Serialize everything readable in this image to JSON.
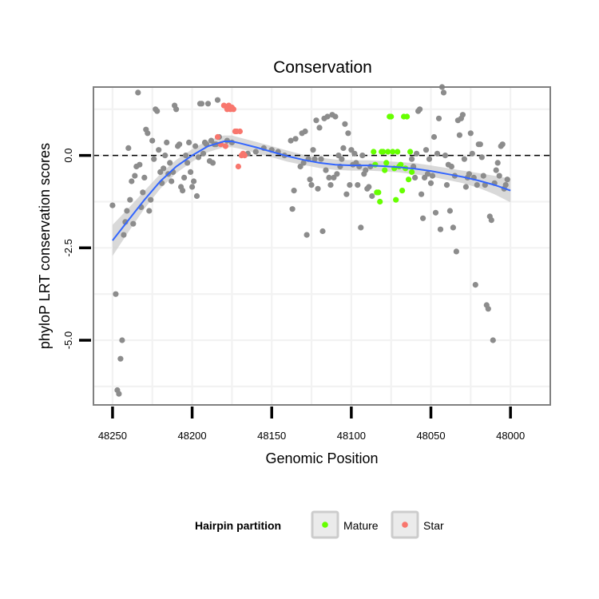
{
  "chart_data": {
    "type": "scatter",
    "title": "Conservation",
    "xlabel": "Genomic Position",
    "ylabel": "phyloP LRT conservation scores",
    "xlim": [
      48262,
      47975
    ],
    "x_reversed": true,
    "ylim": [
      -6.75,
      1.85
    ],
    "x_ticks": [
      48250,
      48200,
      48150,
      48100,
      48050,
      48000
    ],
    "y_ticks": [
      0.0,
      -2.5,
      -5.0
    ],
    "x_tick_labels": [
      "48250",
      "48200",
      "48150",
      "48100",
      "48050",
      "48000"
    ],
    "y_tick_labels": [
      "0.0",
      "-2.5",
      "-5.0"
    ],
    "reference_line": {
      "y": 0,
      "style": "dashed",
      "color": "#000000"
    },
    "legend": {
      "title": "Hairpin partition",
      "placement": "bottom",
      "entries": [
        {
          "label": "Mature",
          "color": "#66ff00"
        },
        {
          "label": "Star",
          "color": "#f8766d"
        }
      ]
    },
    "colors": {
      "other": "#8c8c8c",
      "mature": "#66ff00",
      "star": "#f8766d",
      "smooth": "#3366ff",
      "band": "#cccccc"
    },
    "series": [
      {
        "name": "Other",
        "points": [
          [
            48250,
            -1.35
          ],
          [
            48248,
            -3.75
          ],
          [
            48247,
            -6.35
          ],
          [
            48246,
            -6.45
          ],
          [
            48245,
            -5.5
          ],
          [
            48244,
            -5.0
          ],
          [
            48243,
            -2.15
          ],
          [
            48242,
            -1.8
          ],
          [
            48241,
            -1.5
          ],
          [
            48240,
            0.2
          ],
          [
            48239,
            -1.2
          ],
          [
            48238,
            -0.7
          ],
          [
            48237,
            -1.85
          ],
          [
            48236,
            -0.55
          ],
          [
            48235,
            -0.3
          ],
          [
            48234,
            1.7
          ],
          [
            48233,
            -0.25
          ],
          [
            48232,
            -1.4
          ],
          [
            48231,
            -1.0
          ],
          [
            48230,
            -0.6
          ],
          [
            48229,
            0.7
          ],
          [
            48228,
            0.6
          ],
          [
            48227,
            -1.5
          ],
          [
            48226,
            -1.2
          ],
          [
            48225,
            0.4
          ],
          [
            48224,
            -0.1
          ],
          [
            48223,
            1.25
          ],
          [
            48222,
            1.2
          ],
          [
            48221,
            0.15
          ],
          [
            48220,
            -0.45
          ],
          [
            48219,
            -0.75
          ],
          [
            48218,
            -0.35
          ],
          [
            48217,
            0.0
          ],
          [
            48216,
            0.35
          ],
          [
            48215,
            -0.5
          ],
          [
            48214,
            -0.2
          ],
          [
            48213,
            -0.7
          ],
          [
            48212,
            -0.45
          ],
          [
            48211,
            1.35
          ],
          [
            48210,
            1.25
          ],
          [
            48209,
            0.25
          ],
          [
            48208,
            0.3
          ],
          [
            48207,
            -0.85
          ],
          [
            48206,
            -0.95
          ],
          [
            48205,
            -0.6
          ],
          [
            48204,
            0.0
          ],
          [
            48203,
            -0.2
          ],
          [
            48202,
            0.35
          ],
          [
            48201,
            -0.45
          ],
          [
            48200,
            -0.85
          ],
          [
            48199,
            -0.7
          ],
          [
            48198,
            0.25
          ],
          [
            48197,
            -1.1
          ],
          [
            48196,
            -0.05
          ],
          [
            48195,
            1.4
          ],
          [
            48194,
            1.4
          ],
          [
            48193,
            0.05
          ],
          [
            48192,
            0.35
          ],
          [
            48191,
            0.3
          ],
          [
            48190,
            1.4
          ],
          [
            48189,
            -0.15
          ],
          [
            48188,
            0.4
          ],
          [
            48187,
            -0.2
          ],
          [
            48186,
            0.3
          ],
          [
            48185,
            0.3
          ],
          [
            48184,
            1.5
          ],
          [
            48183,
            0.5
          ],
          [
            48178,
            0.4
          ],
          [
            48175,
            0.35
          ],
          [
            48165,
            0.05
          ],
          [
            48160,
            0.1
          ],
          [
            48155,
            0.2
          ],
          [
            48150,
            0.15
          ],
          [
            48146,
            0.1
          ],
          [
            48142,
            0.0
          ],
          [
            48138,
            0.4
          ],
          [
            48137,
            -1.45
          ],
          [
            48136,
            -0.95
          ],
          [
            48135,
            0.45
          ],
          [
            48132,
            -0.3
          ],
          [
            48131,
            0.6
          ],
          [
            48130,
            -0.2
          ],
          [
            48129,
            0.65
          ],
          [
            48128,
            -2.15
          ],
          [
            48127,
            -0.1
          ],
          [
            48126,
            -0.65
          ],
          [
            48125,
            -0.8
          ],
          [
            48124,
            0.15
          ],
          [
            48123,
            -0.1
          ],
          [
            48122,
            0.95
          ],
          [
            48121,
            -0.9
          ],
          [
            48120,
            0.75
          ],
          [
            48119,
            -0.1
          ],
          [
            48118,
            -2.05
          ],
          [
            48117,
            1.0
          ],
          [
            48116,
            -0.4
          ],
          [
            48115,
            1.05
          ],
          [
            48114,
            -0.6
          ],
          [
            48113,
            -0.8
          ],
          [
            48112,
            1.1
          ],
          [
            48111,
            -0.6
          ],
          [
            48110,
            1.05
          ],
          [
            48109,
            -0.5
          ],
          [
            48108,
            0.0
          ],
          [
            48107,
            -0.3
          ],
          [
            48106,
            -0.1
          ],
          [
            48105,
            0.2
          ],
          [
            48104,
            0.85
          ],
          [
            48103,
            -1.05
          ],
          [
            48102,
            0.6
          ],
          [
            48101,
            -0.8
          ],
          [
            48100,
            0.15
          ],
          [
            48099,
            -0.25
          ],
          [
            48098,
            0.05
          ],
          [
            48097,
            -0.2
          ],
          [
            48096,
            -0.8
          ],
          [
            48095,
            -0.3
          ],
          [
            48094,
            -1.95
          ],
          [
            48093,
            0.0
          ],
          [
            48092,
            -0.5
          ],
          [
            48091,
            -0.4
          ],
          [
            48090,
            -0.9
          ],
          [
            48089,
            -0.85
          ],
          [
            48088,
            -0.3
          ],
          [
            48087,
            -1.1
          ],
          [
            48062,
            -0.1
          ],
          [
            48061,
            -0.3
          ],
          [
            48060,
            -0.6
          ],
          [
            48059,
            0.05
          ],
          [
            48058,
            1.2
          ],
          [
            48057,
            1.25
          ],
          [
            48056,
            -1.05
          ],
          [
            48055,
            -1.7
          ],
          [
            48054,
            -0.6
          ],
          [
            48053,
            0.15
          ],
          [
            48052,
            -0.5
          ],
          [
            48051,
            -0.1
          ],
          [
            48050,
            -0.75
          ],
          [
            48049,
            -0.55
          ],
          [
            48048,
            0.5
          ],
          [
            48047,
            -1.55
          ],
          [
            48046,
            0.05
          ],
          [
            48045,
            1.0
          ],
          [
            48044,
            -2.0
          ],
          [
            48043,
            1.85
          ],
          [
            48042,
            1.7
          ],
          [
            48041,
            0.0
          ],
          [
            48040,
            -0.8
          ],
          [
            48039,
            -0.25
          ],
          [
            48038,
            -1.5
          ],
          [
            48037,
            -0.3
          ],
          [
            48036,
            -1.95
          ],
          [
            48035,
            -0.55
          ],
          [
            48034,
            -2.6
          ],
          [
            48033,
            0.95
          ],
          [
            48032,
            0.55
          ],
          [
            48031,
            1.0
          ],
          [
            48030,
            1.1
          ],
          [
            48029,
            -0.1
          ],
          [
            48028,
            -0.85
          ],
          [
            48027,
            -0.6
          ],
          [
            48026,
            -0.5
          ],
          [
            48025,
            0.6
          ],
          [
            48024,
            0.05
          ],
          [
            48023,
            -0.6
          ],
          [
            48022,
            -3.5
          ],
          [
            48021,
            -0.8
          ],
          [
            48020,
            0.3
          ],
          [
            48019,
            0.3
          ],
          [
            48018,
            -0.05
          ],
          [
            48017,
            -0.55
          ],
          [
            48016,
            -0.8
          ],
          [
            48015,
            -4.05
          ],
          [
            48014,
            -4.15
          ],
          [
            48013,
            -1.65
          ],
          [
            48012,
            -1.75
          ],
          [
            48011,
            -5.0
          ],
          [
            48010,
            -0.75
          ],
          [
            48009,
            -0.4
          ],
          [
            48008,
            -0.2
          ],
          [
            48007,
            -0.55
          ],
          [
            48006,
            0.25
          ],
          [
            48005,
            0.3
          ],
          [
            48004,
            -0.9
          ],
          [
            48003,
            -0.8
          ],
          [
            48002,
            -0.65
          ]
        ]
      },
      {
        "name": "Mature",
        "points": [
          [
            48086,
            0.1
          ],
          [
            48085,
            -0.25
          ],
          [
            48084,
            -1.0
          ],
          [
            48083,
            -1.0
          ],
          [
            48082,
            -1.25
          ],
          [
            48081,
            0.1
          ],
          [
            48080,
            0.1
          ],
          [
            48079,
            -0.4
          ],
          [
            48078,
            -0.2
          ],
          [
            48077,
            0.1
          ],
          [
            48076,
            1.05
          ],
          [
            48075,
            1.05
          ],
          [
            48074,
            0.1
          ],
          [
            48073,
            -0.35
          ],
          [
            48072,
            -1.2
          ],
          [
            48071,
            0.1
          ],
          [
            48070,
            -0.3
          ],
          [
            48069,
            -0.25
          ],
          [
            48068,
            -0.95
          ],
          [
            48067,
            1.05
          ],
          [
            48066,
            -0.35
          ],
          [
            48065,
            1.05
          ],
          [
            48064,
            -0.65
          ],
          [
            48063,
            0.1
          ],
          [
            48062,
            -0.45
          ]
        ]
      },
      {
        "name": "Star",
        "points": [
          [
            48184,
            0.5
          ],
          [
            48182,
            0.3
          ],
          [
            48180,
            1.35
          ],
          [
            48179,
            0.25
          ],
          [
            48178,
            1.25
          ],
          [
            48177,
            1.35
          ],
          [
            48176,
            1.25
          ],
          [
            48175,
            1.3
          ],
          [
            48174,
            1.25
          ],
          [
            48173,
            0.65
          ],
          [
            48172,
            0.65
          ],
          [
            48171,
            -0.3
          ],
          [
            48170,
            0.65
          ],
          [
            48169,
            0.0
          ],
          [
            48168,
            0.05
          ],
          [
            48167,
            0.0
          ]
        ]
      }
    ],
    "smooth": {
      "method": "loess",
      "x": [
        48250,
        48240,
        48230,
        48220,
        48210,
        48200,
        48190,
        48180,
        48175,
        48170,
        48160,
        48150,
        48140,
        48130,
        48120,
        48110,
        48100,
        48090,
        48080,
        48070,
        48060,
        48050,
        48040,
        48030,
        48020,
        48010,
        48000
      ],
      "y": [
        -2.3,
        -1.75,
        -1.2,
        -0.7,
        -0.3,
        0.0,
        0.25,
        0.38,
        0.38,
        0.33,
        0.22,
        0.1,
        -0.02,
        -0.12,
        -0.2,
        -0.25,
        -0.27,
        -0.27,
        -0.29,
        -0.32,
        -0.36,
        -0.42,
        -0.5,
        -0.58,
        -0.68,
        -0.8,
        -0.95
      ],
      "se_half_width": [
        0.42,
        0.32,
        0.24,
        0.2,
        0.18,
        0.17,
        0.16,
        0.16,
        0.16,
        0.15,
        0.15,
        0.15,
        0.15,
        0.14,
        0.14,
        0.14,
        0.14,
        0.14,
        0.14,
        0.14,
        0.15,
        0.15,
        0.16,
        0.17,
        0.2,
        0.25,
        0.32
      ]
    }
  }
}
